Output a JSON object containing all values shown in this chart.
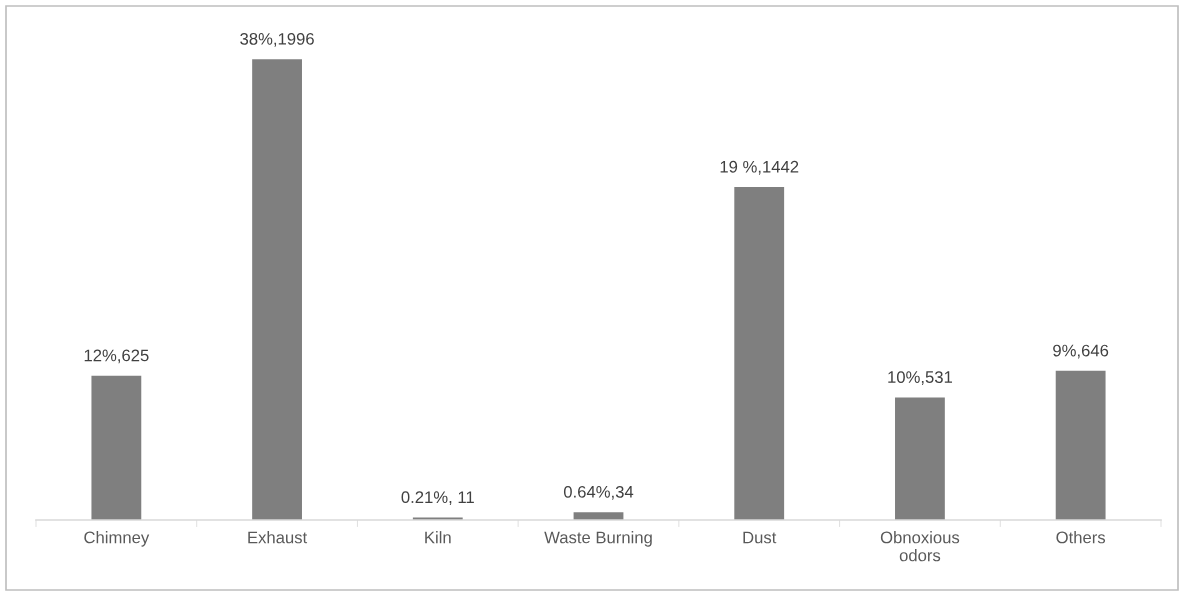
{
  "chart_data": {
    "type": "bar",
    "categories": [
      "Chimney",
      "Exhaust",
      "Kiln",
      "Waste Burning",
      "Dust",
      "Obnoxious\nodors",
      "Others"
    ],
    "values": [
      625,
      1996,
      11,
      34,
      1442,
      531,
      646
    ],
    "value_labels": [
      "12%,625",
      "38%,1996",
      "0.21%, 11",
      "0.64%,34",
      "19 %,1442",
      "10%,531",
      "9%,646"
    ],
    "color": "#7f7f7f",
    "grid": false,
    "legend": false
  }
}
